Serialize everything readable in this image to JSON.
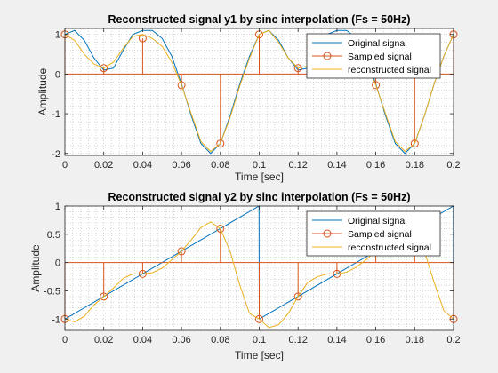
{
  "colors": {
    "figure_bg": "#f0f0f0",
    "axes_bg": "#ffffff",
    "original": "#0072bd",
    "sampled": "#d95319",
    "reconstructed": "#edb120",
    "grid": "#b0b0b0",
    "axis": "#262626"
  },
  "chart_data": [
    {
      "type": "line",
      "title": "Reconstructed signal y1 by sinc interpolation (Fs = 50Hz)",
      "xlabel": "Time [sec]",
      "ylabel": "Amplitude",
      "xlim": [
        0,
        0.2
      ],
      "ylim": [
        -2.05,
        1.15
      ],
      "xticks": [
        0,
        0.02,
        0.04,
        0.06,
        0.08,
        0.1,
        0.12,
        0.14,
        0.16,
        0.18,
        0.2
      ],
      "xticklabels": [
        "0",
        "0.02",
        "0.04",
        "0.06",
        "0.08",
        "0.1",
        "0.12",
        "0.14",
        "0.16",
        "0.18",
        "0.2"
      ],
      "yticks": [
        -2,
        -1,
        0,
        1
      ],
      "yticklabels": [
        "-2",
        "-1",
        "0",
        "1"
      ],
      "grid": "minor-dotted",
      "legend_position": "top-right",
      "legend": [
        "Original signal",
        "Sampled signal",
        "reconstructed signal"
      ],
      "series": [
        {
          "name": "Original signal",
          "style": "line",
          "x": [
            0,
            0.005,
            0.01,
            0.015,
            0.02,
            0.025,
            0.03,
            0.035,
            0.04,
            0.045,
            0.05,
            0.055,
            0.06,
            0.065,
            0.07,
            0.075,
            0.08,
            0.085,
            0.09,
            0.095,
            0.1,
            0.105,
            0.11,
            0.115,
            0.12,
            0.125,
            0.13,
            0.135,
            0.14,
            0.145,
            0.15,
            0.155,
            0.16,
            0.165,
            0.17,
            0.175,
            0.18,
            0.185,
            0.19,
            0.195,
            0.2
          ],
          "y": [
            1.0,
            1.1,
            0.85,
            0.4,
            0.1,
            0.15,
            0.6,
            1.0,
            1.1,
            1.1,
            0.9,
            0.45,
            -0.25,
            -1.05,
            -1.75,
            -2.0,
            -1.75,
            -1.05,
            -0.25,
            0.45,
            1.0,
            1.1,
            0.85,
            0.4,
            0.1,
            0.15,
            0.6,
            1.0,
            1.1,
            1.1,
            0.9,
            0.45,
            -0.25,
            -1.05,
            -1.75,
            -2.0,
            -1.75,
            -1.05,
            -0.25,
            0.45,
            1.0
          ]
        },
        {
          "name": "Sampled signal",
          "style": "stem",
          "x": [
            0,
            0.02,
            0.04,
            0.06,
            0.08,
            0.1,
            0.12,
            0.14,
            0.16,
            0.18,
            0.2
          ],
          "y": [
            1.0,
            0.15,
            0.9,
            -0.28,
            -1.75,
            1.0,
            0.15,
            0.9,
            -0.28,
            -1.75,
            1.0
          ]
        },
        {
          "name": "reconstructed signal",
          "style": "line",
          "x": [
            0,
            0.005,
            0.01,
            0.015,
            0.02,
            0.025,
            0.03,
            0.035,
            0.04,
            0.045,
            0.05,
            0.055,
            0.06,
            0.065,
            0.07,
            0.075,
            0.08,
            0.085,
            0.09,
            0.095,
            0.1,
            0.105,
            0.11,
            0.115,
            0.12,
            0.125,
            0.13,
            0.135,
            0.14,
            0.145,
            0.15,
            0.155,
            0.16,
            0.165,
            0.17,
            0.175,
            0.18,
            0.185,
            0.19,
            0.195,
            0.2
          ],
          "y": [
            1.0,
            0.85,
            0.5,
            0.25,
            0.15,
            0.3,
            0.65,
            0.95,
            1.0,
            0.9,
            0.7,
            0.3,
            -0.28,
            -1.0,
            -1.7,
            -1.95,
            -1.75,
            -1.1,
            -0.3,
            0.4,
            1.0,
            1.1,
            0.8,
            0.4,
            0.15,
            0.2,
            0.55,
            0.95,
            1.0,
            0.95,
            0.75,
            0.3,
            -0.28,
            -1.0,
            -1.7,
            -1.95,
            -1.75,
            -1.05,
            -0.25,
            0.45,
            1.0
          ]
        }
      ]
    },
    {
      "type": "line",
      "title": "Reconstructed signal y2 by sinc interpolation (Fs = 50Hz)",
      "xlabel": "Time [sec]",
      "ylabel": "Amplitude",
      "xlim": [
        0,
        0.2
      ],
      "ylim": [
        -1.2,
        1.0
      ],
      "xticks": [
        0,
        0.02,
        0.04,
        0.06,
        0.08,
        0.1,
        0.12,
        0.14,
        0.16,
        0.18,
        0.2
      ],
      "xticklabels": [
        "0",
        "0.02",
        "0.04",
        "0.06",
        "0.08",
        "0.1",
        "0.12",
        "0.14",
        "0.16",
        "0.18",
        "0.2"
      ],
      "yticks": [
        -1,
        -0.5,
        0,
        0.5,
        1
      ],
      "yticklabels": [
        "-1",
        "-0.5",
        "0",
        "0.5",
        "1"
      ],
      "grid": "minor-dotted",
      "legend_position": "top-right",
      "legend": [
        "Original signal",
        "Sampled signal",
        "reconstructed signal"
      ],
      "series": [
        {
          "name": "Original signal",
          "style": "line",
          "x": [
            0,
            0.0999,
            0.1,
            0.1999,
            0.2
          ],
          "y": [
            -1,
            1,
            -1,
            1,
            -1
          ]
        },
        {
          "name": "Sampled signal",
          "style": "stem",
          "x": [
            0,
            0.02,
            0.04,
            0.06,
            0.08,
            0.1,
            0.12,
            0.14,
            0.16,
            0.18,
            0.2
          ],
          "y": [
            -1,
            -0.6,
            -0.2,
            0.2,
            0.6,
            -1,
            -0.6,
            -0.2,
            0.2,
            0.6,
            -1
          ]
        },
        {
          "name": "reconstructed signal",
          "style": "line",
          "x": [
            0,
            0.005,
            0.01,
            0.015,
            0.02,
            0.025,
            0.03,
            0.035,
            0.04,
            0.045,
            0.05,
            0.055,
            0.06,
            0.065,
            0.07,
            0.075,
            0.08,
            0.085,
            0.09,
            0.095,
            0.1,
            0.105,
            0.11,
            0.115,
            0.12,
            0.125,
            0.13,
            0.135,
            0.14,
            0.145,
            0.15,
            0.155,
            0.16,
            0.165,
            0.17,
            0.175,
            0.18,
            0.185,
            0.19,
            0.195,
            0.2
          ],
          "y": [
            -1,
            -1.05,
            -0.95,
            -0.75,
            -0.6,
            -0.45,
            -0.28,
            -0.2,
            -0.2,
            -0.18,
            -0.1,
            0.05,
            0.2,
            0.4,
            0.62,
            0.72,
            0.6,
            0.2,
            -0.4,
            -0.9,
            -1,
            -1.15,
            -1.1,
            -0.9,
            -0.6,
            -0.35,
            -0.25,
            -0.2,
            -0.2,
            -0.17,
            -0.08,
            0.05,
            0.2,
            0.4,
            0.6,
            0.7,
            0.6,
            0.2,
            -0.35,
            -0.85,
            -1
          ]
        }
      ]
    }
  ]
}
